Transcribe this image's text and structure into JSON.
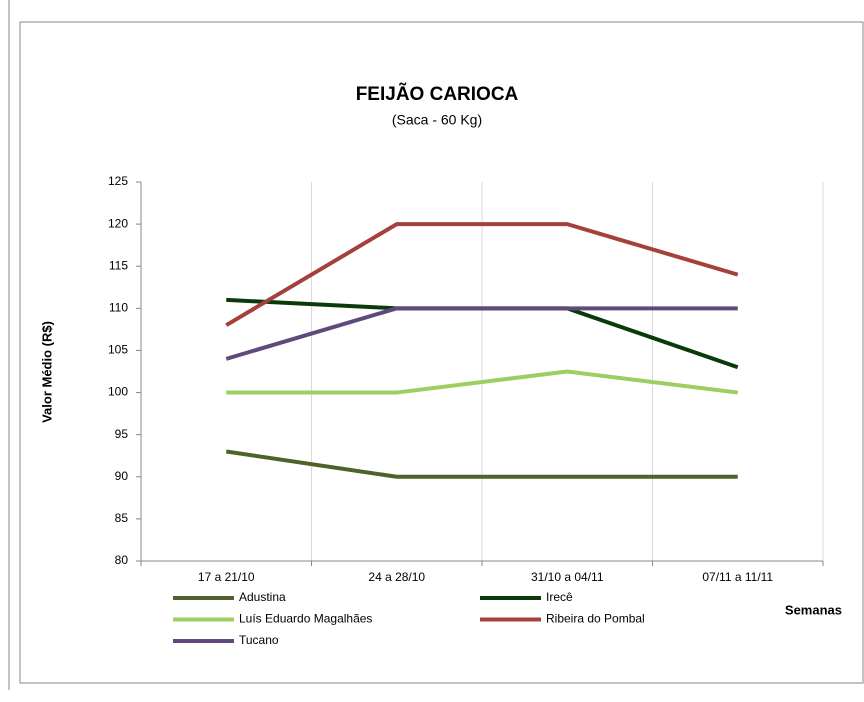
{
  "chart_data": {
    "type": "line",
    "title": "FEIJÃO CARIOCA",
    "subtitle": "(Saca - 60 Kg)",
    "y_label": "Valor Médio (R$)",
    "x_label": "Semanas",
    "categories": [
      "17 a 21/10",
      "24 a 28/10",
      "31/10 a 04/11",
      "07/11 a 11/11"
    ],
    "series": [
      {
        "name": "Adustina",
        "color": "#4f6228",
        "values": [
          93,
          90,
          90,
          90
        ]
      },
      {
        "name": "Irecê",
        "color": "#0a3a0a",
        "values": [
          111,
          110,
          110,
          103
        ]
      },
      {
        "name": "Luís Eduardo Magalhães",
        "color": "#9bcf5f",
        "values": [
          100,
          100,
          102.5,
          100
        ]
      },
      {
        "name": "Ribeira do Pombal",
        "color": "#a5403c",
        "values": [
          108,
          120,
          120,
          114
        ]
      },
      {
        "name": "Tucano",
        "color": "#604a7b",
        "values": [
          104,
          110,
          110,
          110
        ]
      }
    ],
    "ylim": [
      80,
      125
    ],
    "yticks": [
      80,
      85,
      90,
      95,
      100,
      105,
      110,
      115,
      120,
      125
    ],
    "grid": "x",
    "legend": "bottom"
  }
}
